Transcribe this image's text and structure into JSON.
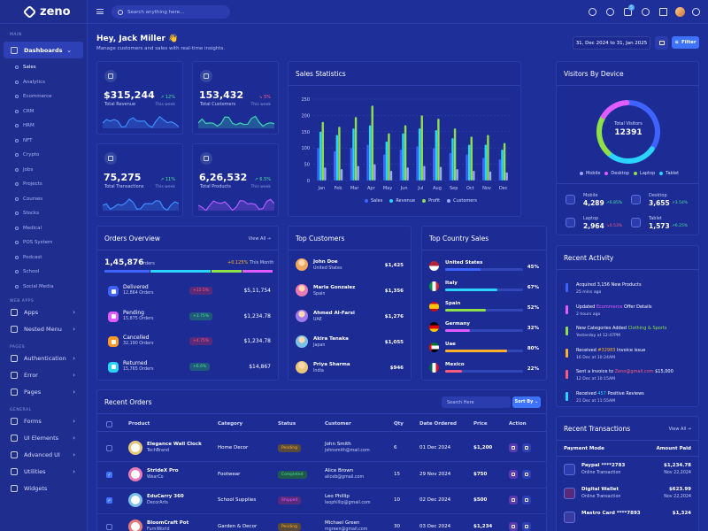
{
  "app": {
    "name": "zeno"
  },
  "search": {
    "placeholder": "Search anything here..."
  },
  "sidebar": {
    "main_label": "MAIN",
    "dashboards": "Dashboards",
    "sub": [
      "Sales",
      "Analytics",
      "Ecommerce",
      "CRM",
      "HRM",
      "NFT",
      "Crypto",
      "Jobs",
      "Projects",
      "Courses",
      "Stocks",
      "Medical",
      "POS System",
      "Podcast",
      "School",
      "Social Media"
    ],
    "web_apps_label": "WEB APPS",
    "apps": "Apps",
    "nested": "Nested Menu",
    "pages_label": "PAGES",
    "auth": "Authentication",
    "error": "Error",
    "pages": "Pages",
    "general_label": "GENERAL",
    "forms": "Forms",
    "ui": "UI Elements",
    "advanced": "Advanced UI",
    "utilities": "Utilities",
    "widgets": "Widgets"
  },
  "header": {
    "cart_badge": "5",
    "greeting": "Hey, Jack Miller 👋",
    "sub": "Manage customers and sales with real-time insights.",
    "date_range": "31, Dec 2024 to 31, Jan 2025",
    "filter": "Filter"
  },
  "stats": [
    {
      "value": "$315,244",
      "label": "Total Revenue",
      "change": "12%",
      "dir": "up",
      "week": "This week",
      "color": "#3f8dff",
      "level": 0.6
    },
    {
      "value": "153,432",
      "label": "Total Customers",
      "change": "5%",
      "dir": "down",
      "week": "This week",
      "color": "#3fd8b0",
      "level": 0.55
    },
    {
      "value": "75,275",
      "label": "Total Transactions",
      "change": "11%",
      "dir": "up",
      "week": "This week",
      "color": "#3f8dff",
      "level": 0.5
    },
    {
      "value": "6,26,532",
      "label": "Total Products",
      "change": "6.5%",
      "dir": "up",
      "week": "This week",
      "color": "#b05cff",
      "level": 0.5
    }
  ],
  "sales": {
    "title": "Sales Statistics"
  },
  "chart_data": {
    "type": "bar",
    "categories": [
      "Jan",
      "Feb",
      "Mar",
      "Apr",
      "May",
      "Jun",
      "Jul",
      "Aug",
      "Sep",
      "Oct",
      "Nov",
      "Dec"
    ],
    "ylim": [
      0,
      250
    ],
    "yticks": [
      0,
      50,
      100,
      150,
      200,
      250
    ],
    "series": [
      {
        "name": "Sales",
        "color": "#3f63ff",
        "values": [
          100,
          90,
          100,
          110,
          80,
          95,
          105,
          100,
          85,
          80,
          70,
          65
        ]
      },
      {
        "name": "Revenue",
        "color": "#2ad4ff",
        "values": [
          150,
          140,
          160,
          170,
          120,
          145,
          160,
          155,
          130,
          110,
          110,
          95
        ]
      },
      {
        "name": "Profit",
        "color": "#8ee04a",
        "values": [
          180,
          165,
          195,
          230,
          145,
          170,
          200,
          190,
          160,
          135,
          140,
          115
        ]
      },
      {
        "name": "Customers",
        "color": "#9aa6ff",
        "values": [
          40,
          35,
          45,
          50,
          30,
          40,
          45,
          42,
          35,
          30,
          28,
          25
        ]
      }
    ]
  },
  "visitors": {
    "title": "Visitors By Device",
    "center_label": "Total Visitors",
    "total": "12391",
    "legend": [
      {
        "name": "Mobile",
        "color": "#9aa6ff"
      },
      {
        "name": "Desktop",
        "color": "#e05cff"
      },
      {
        "name": "Laptop",
        "color": "#8ee04a"
      },
      {
        "name": "Tablet",
        "color": "#2ad4ff"
      }
    ],
    "devices": [
      {
        "name": "Mobile",
        "value": "4,289",
        "change": "6.85%",
        "dir": "up"
      },
      {
        "name": "Desktop",
        "value": "3,655",
        "change": "3.54%",
        "dir": "up"
      },
      {
        "name": "Laptop",
        "value": "2,964",
        "change": "0.53%",
        "dir": "down"
      },
      {
        "name": "Tablet",
        "value": "1,573",
        "change": "6.25%",
        "dir": "up"
      }
    ]
  },
  "orders": {
    "title": "Orders Overview",
    "view_all": "View All →",
    "total": "1,45,876",
    "total_label": "Orders",
    "change": "+0.125%",
    "period": "This Month",
    "items": [
      {
        "name": "Delivered",
        "count": "12,864 Orders",
        "change": "+12.5%",
        "dir": "down",
        "amount": "$5,11,754",
        "color": "#3f63ff"
      },
      {
        "name": "Pending",
        "count": "15,875 Orders",
        "change": "+3.75%",
        "dir": "up",
        "amount": "$1,234.78",
        "color": "#e05cff"
      },
      {
        "name": "Cancelled",
        "count": "32,190 Orders",
        "change": "+4.75%",
        "dir": "down",
        "amount": "$1,234.78",
        "color": "#ff9a2a"
      },
      {
        "name": "Returned",
        "count": "15,765 Orders",
        "change": "+6.6%",
        "dir": "up",
        "amount": "$14,867",
        "color": "#2ad4ff"
      }
    ]
  },
  "customers": {
    "title": "Top Customers",
    "items": [
      {
        "name": "John Doe",
        "country": "United States",
        "amount": "$1,425"
      },
      {
        "name": "Maria Gonzalez",
        "country": "Spain",
        "amount": "$1,356"
      },
      {
        "name": "Ahmed Al-Farsi",
        "country": "UAE",
        "amount": "$1,276"
      },
      {
        "name": "Akira Tanaka",
        "country": "Japan",
        "amount": "$1,055"
      },
      {
        "name": "Priya Sharma",
        "country": "India",
        "amount": "$946"
      }
    ]
  },
  "countries": {
    "title": "Top Country Sales",
    "items": [
      {
        "name": "United States",
        "pct": "45%",
        "level": 0.45,
        "color": "#3f63ff"
      },
      {
        "name": "Italy",
        "pct": "67%",
        "level": 0.67,
        "color": "#2ad4ff"
      },
      {
        "name": "Spain",
        "pct": "52%",
        "level": 0.52,
        "color": "#8ee04a"
      },
      {
        "name": "Germany",
        "pct": "32%",
        "level": 0.32,
        "color": "#e05cff"
      },
      {
        "name": "Uae",
        "pct": "80%",
        "level": 0.8,
        "color": "#ffb02a"
      },
      {
        "name": "Mexico",
        "pct": "22%",
        "level": 0.22,
        "color": "#ff5c7c"
      }
    ]
  },
  "activity": {
    "title": "Recent Activity",
    "items": [
      {
        "pre": "Acquired 3,156 New Products",
        "hl": "",
        "post": "",
        "time": "25 mins ago",
        "color": "#3f63ff",
        "hlc": ""
      },
      {
        "pre": "Updated ",
        "hl": "Ecommerce",
        "post": " Offer Details",
        "time": "2 hours ago",
        "color": "#e05cff",
        "hlc": "#e05cff"
      },
      {
        "pre": "New Categories Added ",
        "hl": "Clothing & Sports",
        "post": "",
        "time": "Yesterday at 12:47PM",
        "color": "#8ee04a",
        "hlc": "#8ee04a"
      },
      {
        "pre": "Received ",
        "hl": "#32983",
        "post": " Invoice issue",
        "time": "16 Dec at 10:24AM",
        "color": "#ffb02a",
        "hlc": "#ffb02a"
      },
      {
        "pre": "Sent a invoice to ",
        "hl": "Zeno@gmail.com",
        "post": " $15,000",
        "time": "12 Dec at 10:15AM",
        "color": "#ff5c7c",
        "hlc": "#ff5c7c"
      },
      {
        "pre": "Received ",
        "hl": "457",
        "post": " Positive Reviews",
        "time": "21 Dec at 11:55AM",
        "color": "#2ad4ff",
        "hlc": "#2ad4ff"
      }
    ]
  },
  "recent_orders": {
    "title": "Recent Orders",
    "search_placeholder": "Search Here",
    "sort": "Sort By",
    "columns": [
      "Product",
      "Category",
      "Status",
      "Customer",
      "Qty",
      "Date Ordered",
      "Price",
      "Action"
    ],
    "rows": [
      {
        "product": "Elegance Wall Clock",
        "brand": "TechBrand",
        "category": "Home Decor",
        "status": "Pending",
        "customer": "John Smith",
        "email": "johnsmith@mail.com",
        "qty": "6",
        "date": "01 Dec 2024",
        "price": "$1,200",
        "checked": false
      },
      {
        "product": "StrideX Pro",
        "brand": "WearCo",
        "category": "Footwear",
        "status": "Completed",
        "customer": "Alice Brown",
        "email": "aliceb@gmail.com",
        "qty": "15",
        "date": "29 Nov 2024",
        "price": "$750",
        "checked": true
      },
      {
        "product": "EduCarry 360",
        "brand": "DecorArts",
        "category": "School Supplies",
        "status": "Shipped",
        "customer": "Leo Phillip",
        "email": "leophillip@gmail.com",
        "qty": "10",
        "date": "02 Dec 2024",
        "price": "$500",
        "checked": true
      },
      {
        "product": "BloomCraft Pot",
        "brand": "FurniWorld",
        "category": "Garden & Decor",
        "status": "Pending",
        "customer": "Michael Green",
        "email": "mgreen@gmail.com",
        "qty": "30",
        "date": "03 Dec 2024",
        "price": "$1,234",
        "checked": false
      }
    ]
  },
  "transactions": {
    "title": "Recent Transactions",
    "view_all": "View All →",
    "col_mode": "Payment Mode",
    "col_amount": "Amount Paid",
    "items": [
      {
        "name": "Paypal ****2783",
        "type": "Online Transaction",
        "amount": "$1,234.78",
        "date": "Nov 22,2024"
      },
      {
        "name": "Digital Wallet",
        "type": "Online Transaction",
        "amount": "$623.99",
        "date": "Nov 22,2024"
      },
      {
        "name": "Mastro Card ****7893",
        "type": "",
        "amount": "$1,324",
        "date": ""
      }
    ]
  }
}
